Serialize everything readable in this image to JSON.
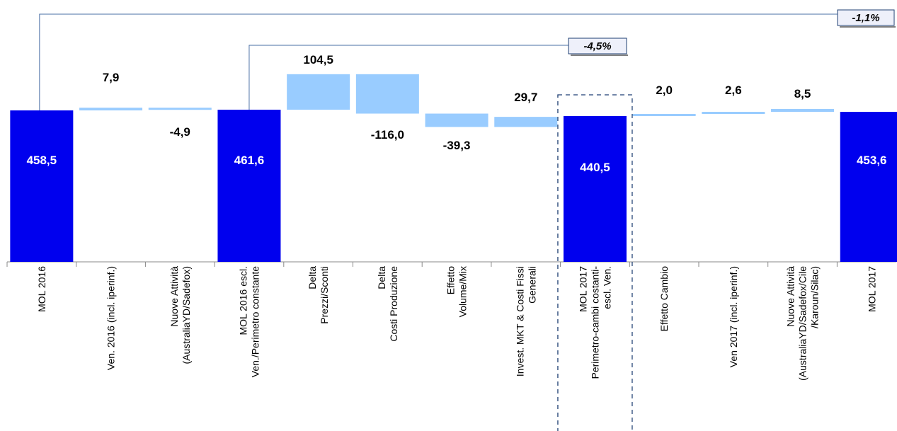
{
  "chart_data": {
    "type": "waterfall",
    "colors": {
      "total": "#0000ee",
      "delta": "#99ccff",
      "dashed_box": "#1f3f73",
      "connector": "#4a6fa5",
      "annotation_fill": "#eef0fa"
    },
    "categories": [
      {
        "label": [
          "MOL 2016"
        ],
        "value": 458.5,
        "kind": "total",
        "display": "458,5"
      },
      {
        "label": [
          "Ven. 2016 (incl. iperinf.)"
        ],
        "value": 7.9,
        "kind": "delta",
        "display": "7,9"
      },
      {
        "label": [
          "Nuove Attività",
          "(AustraliaYD/Sadefox)"
        ],
        "value": -4.9,
        "kind": "delta",
        "display": "-4,9"
      },
      {
        "label": [
          "MOL 2016 escl.",
          "Ven./Perimetro constante"
        ],
        "value": 461.6,
        "kind": "total",
        "display": "461,6"
      },
      {
        "label": [
          "Delta",
          "Prezzi/Sconti"
        ],
        "value": 104.5,
        "kind": "delta",
        "display": "104,5"
      },
      {
        "label": [
          "Delta",
          "Costi Produzione"
        ],
        "value": -116.0,
        "kind": "delta",
        "display": "-116,0"
      },
      {
        "label": [
          "Effetto",
          "Volume/Mix"
        ],
        "value": -39.3,
        "kind": "delta",
        "display": "-39,3"
      },
      {
        "label": [
          "Invest. MKT & Costi Fissi",
          "Generali"
        ],
        "value": 29.7,
        "kind": "delta",
        "display": "29,7"
      },
      {
        "label": [
          "MOL 2017",
          "Perimetro-cambi costanti-",
          "escl. Ven."
        ],
        "value": 440.5,
        "kind": "total",
        "display": "440,5"
      },
      {
        "label": [
          "Effetto Cambio"
        ],
        "value": 2.0,
        "kind": "delta",
        "display": "2,0"
      },
      {
        "label": [
          "Ven 2017 (incl. iperinf.)"
        ],
        "value": 2.6,
        "kind": "delta",
        "display": "2,6"
      },
      {
        "label": [
          "Nuove Attività",
          "(AustraliaYD/Sadefox/Cile",
          "/Karoun/Silac)"
        ],
        "value": 8.5,
        "kind": "delta",
        "display": "8,5"
      },
      {
        "label": [
          "MOL 2017"
        ],
        "value": 453.6,
        "kind": "total",
        "display": "453,6"
      }
    ],
    "annotations": [
      {
        "text": "-1,1%",
        "from_index": 0,
        "to_index": 12
      },
      {
        "text": "-4,5%",
        "from_index": 3,
        "to_index": 8
      }
    ],
    "highlight_index": 8
  }
}
